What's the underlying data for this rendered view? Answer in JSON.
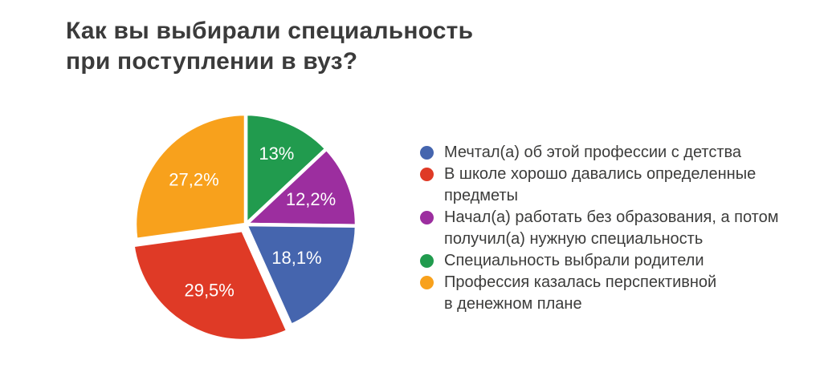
{
  "chart_data": {
    "type": "pie",
    "title": "Как вы выбирали специальность\nпри поступлении в вуз?",
    "title_color": "#3b3b3b",
    "text_color": "#3c3c3b",
    "label_color": "#ffffff",
    "background": "#ffffff",
    "legend_position": "right",
    "direction": "clockwise",
    "start_angle_deg": 0,
    "segments": [
      {
        "key": "childhood-dream",
        "label": "Мечтал(а) об этой профессии с детства",
        "value": 18.1,
        "display": "18,1%",
        "color": "#4565ae",
        "exploded": false,
        "label_radius": 0.55
      },
      {
        "key": "good-school-subjects",
        "label": "В школе хорошо давались определенные\nпредметы",
        "value": 29.5,
        "display": "29,5%",
        "color": "#df3a26",
        "exploded": true,
        "label_radius": 0.62
      },
      {
        "key": "worked-before-education",
        "label": "Начал(а) работать без образования, а потом\nполучил(а) нужную специальность",
        "value": 12.2,
        "display": "12,2%",
        "color": "#9c2e9f",
        "exploded": false,
        "label_radius": 0.63
      },
      {
        "key": "parents-chose",
        "label": "Специальность выбрали родители",
        "value": 13,
        "display": "13%",
        "color": "#219b4e",
        "exploded": false,
        "label_radius": 0.7
      },
      {
        "key": "profitable-profession",
        "label": "Профессия казалась перспективной\nв денежном плане",
        "value": 27.2,
        "display": "27,2%",
        "color": "#f8a11c",
        "exploded": false,
        "label_radius": 0.62
      }
    ],
    "draw_order": [
      3,
      2,
      0,
      1,
      4
    ]
  }
}
